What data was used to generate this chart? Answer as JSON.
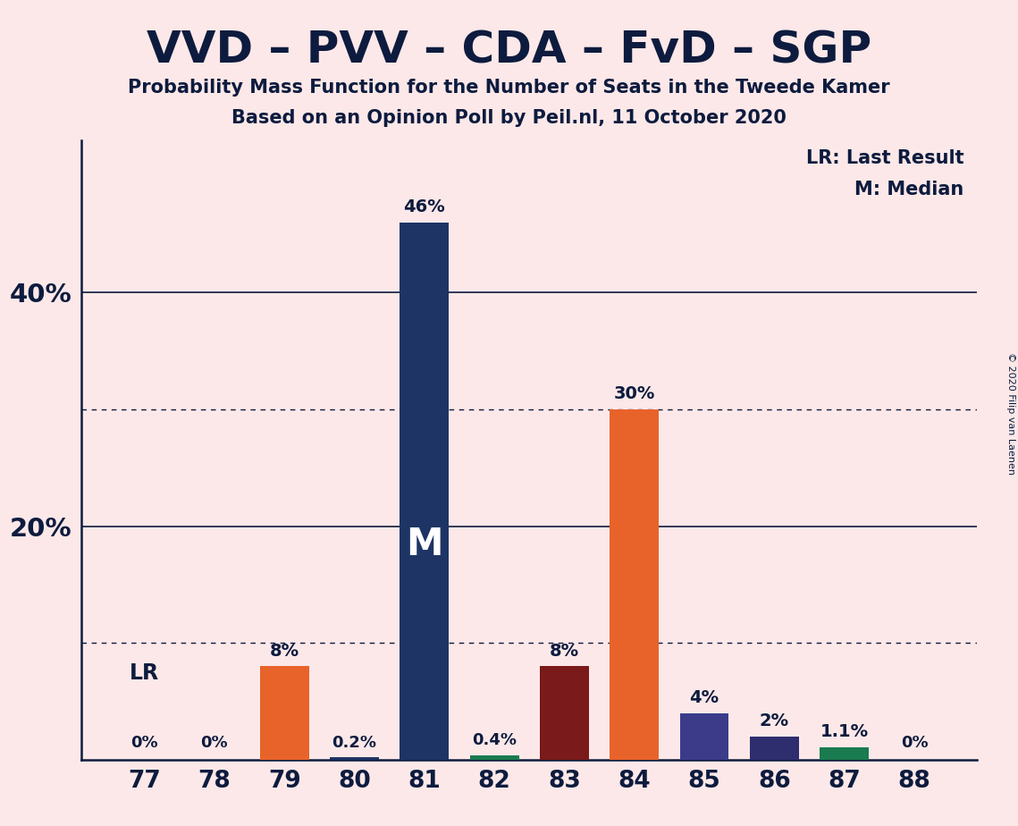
{
  "title": "VVD – PVV – CDA – FvD – SGP",
  "subtitle1": "Probability Mass Function for the Number of Seats in the Tweede Kamer",
  "subtitle2": "Based on an Opinion Poll by Peil.nl, 11 October 2020",
  "copyright": "© 2020 Filip van Laenen",
  "categories": [
    77,
    78,
    79,
    80,
    81,
    82,
    83,
    84,
    85,
    86,
    87,
    88
  ],
  "values": [
    0.0,
    0.0,
    8.0,
    0.2,
    46.0,
    0.4,
    8.0,
    30.0,
    4.0,
    2.0,
    1.1,
    0.0
  ],
  "labels": [
    "0%",
    "0%",
    "8%",
    "0.2%",
    "46%",
    "0.4%",
    "8%",
    "30%",
    "4%",
    "2%",
    "1.1%",
    "0%"
  ],
  "bar_colors": [
    "#e8e0e0",
    "#e8e0e0",
    "#e8632a",
    "#1e3464",
    "#1e3464",
    "#1a7a50",
    "#7a1a1a",
    "#e8632a",
    "#3b3b8a",
    "#2e2e6e",
    "#1a7a50",
    "#e8e0e0"
  ],
  "background_color": "#fce8e8",
  "text_color": "#0d1b3e",
  "dotted_lines": [
    10,
    30
  ],
  "solid_lines": [
    20,
    40
  ],
  "legend_line1": "LR: Last Result",
  "legend_line2": "M: Median",
  "median_seat": 81,
  "median_label": "M",
  "ylim": [
    0,
    53
  ],
  "xlim_left": 76.1,
  "xlim_right": 88.9
}
